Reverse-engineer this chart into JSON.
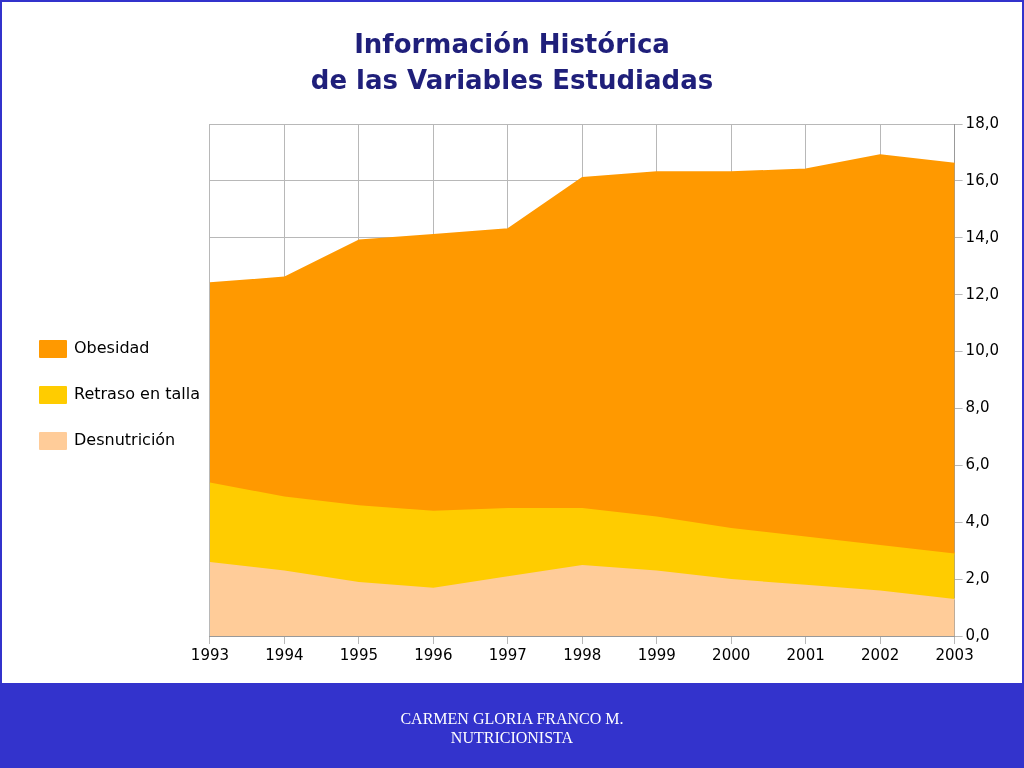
{
  "chart_data": {
    "type": "area",
    "title": "Información Histórica\nde las Variables Estudiadas",
    "categories": [
      "1993",
      "1994",
      "1995",
      "1996",
      "1997",
      "1998",
      "1999",
      "2000",
      "2001",
      "2002",
      "2003"
    ],
    "series": [
      {
        "name": "Obesidad",
        "color": "#ff9900",
        "values": [
          12.4,
          12.6,
          13.9,
          14.1,
          14.3,
          16.1,
          16.3,
          16.3,
          16.4,
          16.9,
          16.6
        ]
      },
      {
        "name": "Retraso en talla",
        "color": "#ffcc00",
        "values": [
          5.4,
          4.9,
          4.6,
          4.4,
          4.5,
          4.5,
          4.2,
          3.8,
          3.5,
          3.2,
          2.9
        ]
      },
      {
        "name": "Desnutrición",
        "color": "#ffcc99",
        "values": [
          2.6,
          2.3,
          1.9,
          1.7,
          2.1,
          2.5,
          2.3,
          2.0,
          1.8,
          1.6,
          1.3
        ]
      }
    ],
    "ylim": [
      0,
      18
    ],
    "yticks": [
      {
        "value": 0,
        "label": "0,0"
      },
      {
        "value": 2,
        "label": "2,0"
      },
      {
        "value": 4,
        "label": "4,0"
      },
      {
        "value": 6,
        "label": "6,0"
      },
      {
        "value": 8,
        "label": "8,0"
      },
      {
        "value": 10,
        "label": "10,0"
      },
      {
        "value": 12,
        "label": "12,0"
      },
      {
        "value": 14,
        "label": "14,0"
      },
      {
        "value": 16,
        "label": "16,0"
      },
      {
        "value": 18,
        "label": "18,0"
      }
    ],
    "grid": true,
    "legend": "left",
    "annotations": [
      "CARMEN GLORIA FRANCO M.",
      "NUTRICIONISTA"
    ]
  }
}
